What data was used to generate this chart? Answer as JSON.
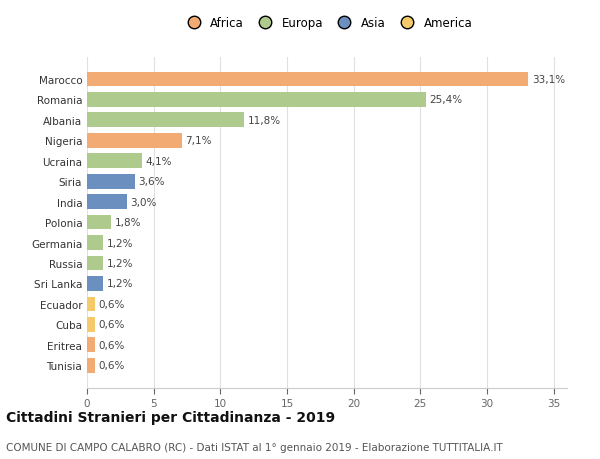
{
  "countries": [
    "Marocco",
    "Romania",
    "Albania",
    "Nigeria",
    "Ucraina",
    "Siria",
    "India",
    "Polonia",
    "Germania",
    "Russia",
    "Sri Lanka",
    "Ecuador",
    "Cuba",
    "Eritrea",
    "Tunisia"
  ],
  "values": [
    33.1,
    25.4,
    11.8,
    7.1,
    4.1,
    3.6,
    3.0,
    1.8,
    1.2,
    1.2,
    1.2,
    0.6,
    0.6,
    0.6,
    0.6
  ],
  "labels": [
    "33,1%",
    "25,4%",
    "11,8%",
    "7,1%",
    "4,1%",
    "3,6%",
    "3,0%",
    "1,8%",
    "1,2%",
    "1,2%",
    "1,2%",
    "0,6%",
    "0,6%",
    "0,6%",
    "0,6%"
  ],
  "continents": [
    "Africa",
    "Europa",
    "Europa",
    "Africa",
    "Europa",
    "Asia",
    "Asia",
    "Europa",
    "Europa",
    "Europa",
    "Asia",
    "America",
    "America",
    "Africa",
    "Africa"
  ],
  "continent_colors": {
    "Africa": "#F2AB72",
    "Europa": "#AECA8C",
    "Asia": "#6B90C0",
    "America": "#F5CA6A"
  },
  "legend_order": [
    "Africa",
    "Europa",
    "Asia",
    "America"
  ],
  "title": "Cittadini Stranieri per Cittadinanza - 2019",
  "subtitle": "COMUNE DI CAMPO CALABRO (RC) - Dati ISTAT al 1° gennaio 2019 - Elaborazione TUTTITALIA.IT",
  "xlim": [
    0,
    36
  ],
  "xticks": [
    0,
    5,
    10,
    15,
    20,
    25,
    30,
    35
  ],
  "background_color": "#ffffff",
  "grid_color": "#e0e0e0",
  "bar_height": 0.72,
  "title_fontsize": 10,
  "subtitle_fontsize": 7.5,
  "label_fontsize": 7.5,
  "tick_fontsize": 7.5,
  "legend_fontsize": 8.5
}
